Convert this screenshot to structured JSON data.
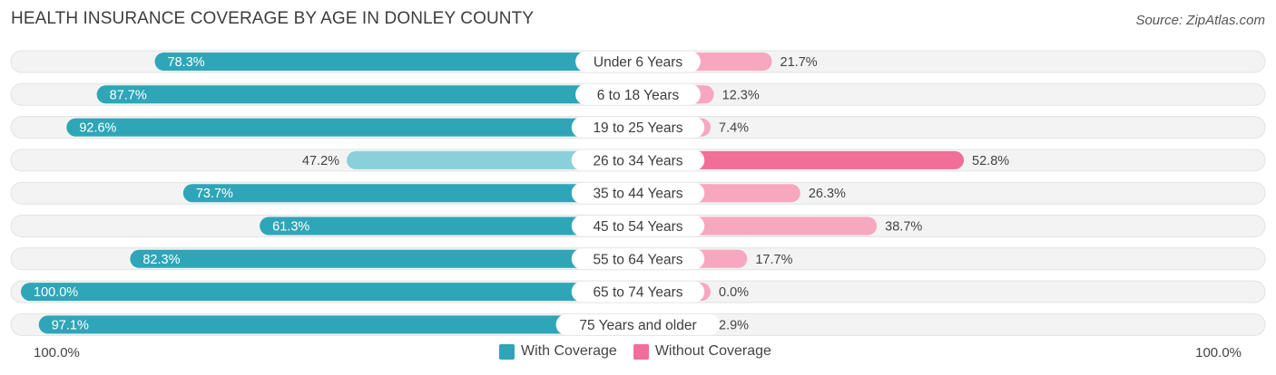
{
  "header": {
    "title": "HEALTH INSURANCE COVERAGE BY AGE IN DONLEY COUNTY",
    "source": "Source: ZipAtlas.com"
  },
  "axis": {
    "left_label": "100.0%",
    "right_label": "100.0%"
  },
  "legend": {
    "with_label": "With Coverage",
    "without_label": "Without Coverage"
  },
  "colors": {
    "with_dark": "#2ea6b8",
    "with_light": "#8ad0da",
    "without_dark": "#f06e97",
    "without_light": "#f7a7c0",
    "track": "#f0f0f0"
  },
  "chart_data": {
    "type": "bar",
    "orientation": "horizontal-diverging",
    "title": "HEALTH INSURANCE COVERAGE BY AGE IN DONLEY COUNTY",
    "categories": [
      "Under 6 Years",
      "6 to 18 Years",
      "19 to 25 Years",
      "26 to 34 Years",
      "35 to 44 Years",
      "45 to 54 Years",
      "55 to 64 Years",
      "65 to 74 Years",
      "75 Years and older"
    ],
    "series": [
      {
        "name": "With Coverage",
        "values": [
          78.3,
          87.7,
          92.6,
          47.2,
          73.7,
          61.3,
          82.3,
          100.0,
          97.1
        ],
        "labels": [
          "78.3%",
          "87.7%",
          "92.6%",
          "47.2%",
          "73.7%",
          "61.3%",
          "82.3%",
          "100.0%",
          "97.1%"
        ]
      },
      {
        "name": "Without Coverage",
        "values": [
          21.7,
          12.3,
          7.4,
          52.8,
          26.3,
          38.7,
          17.7,
          0.0,
          2.9
        ],
        "labels": [
          "21.7%",
          "12.3%",
          "7.4%",
          "52.8%",
          "26.3%",
          "38.7%",
          "17.7%",
          "0.0%",
          "2.9%"
        ]
      }
    ],
    "xlim": [
      0,
      100
    ],
    "legend_position": "bottom-center"
  }
}
